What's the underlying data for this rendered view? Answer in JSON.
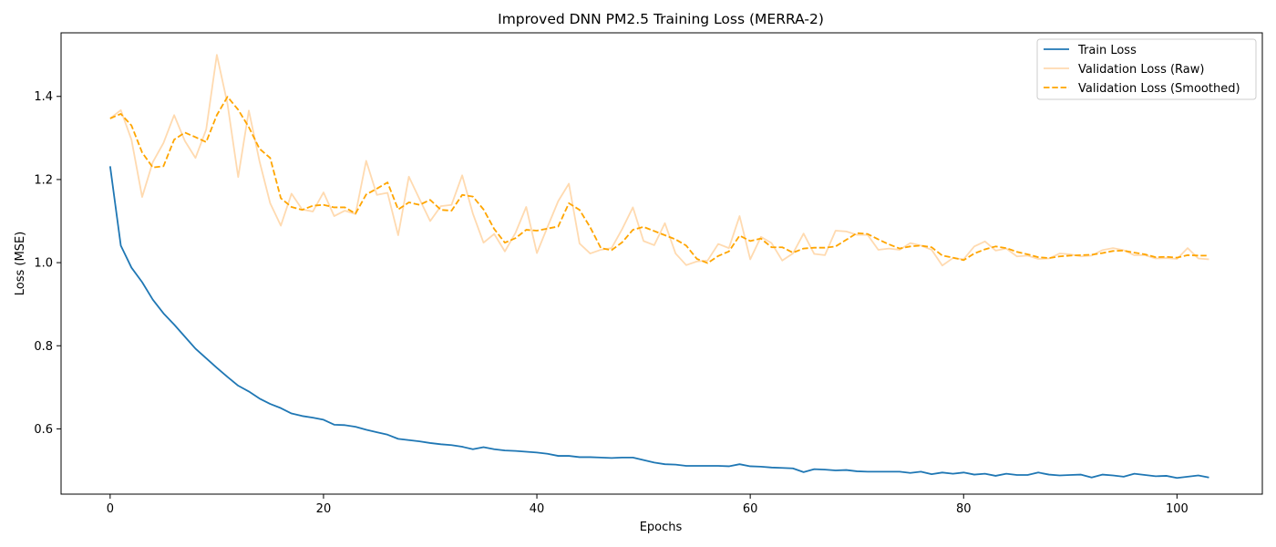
{
  "chart_data": {
    "type": "line",
    "title": "Improved DNN PM2.5 Training Loss (MERRA-2)",
    "xlabel": "Epochs",
    "ylabel": "Loss (MSE)",
    "xlim": [
      -4.6,
      108
    ],
    "ylim": [
      0.443,
      1.553
    ],
    "xticks": [
      0,
      20,
      40,
      60,
      80,
      100
    ],
    "yticks": [
      0.6,
      0.8,
      1.0,
      1.2,
      1.4
    ],
    "xtick_labels": [
      "0",
      "20",
      "40",
      "60",
      "80",
      "100"
    ],
    "ytick_labels": [
      "0.6",
      "0.8",
      "1.0",
      "1.2",
      "1.4"
    ],
    "grid": false,
    "legend_position": "top-right",
    "series": [
      {
        "name": "Train Loss",
        "color": "#1f77b4",
        "style": "solid",
        "opacity": 1.0,
        "values": [
          1.232,
          1.041,
          0.988,
          0.953,
          0.911,
          0.878,
          0.851,
          0.822,
          0.793,
          0.77,
          0.747,
          0.725,
          0.704,
          0.69,
          0.673,
          0.66,
          0.65,
          0.637,
          0.631,
          0.627,
          0.622,
          0.61,
          0.609,
          0.605,
          0.598,
          0.592,
          0.586,
          0.576,
          0.573,
          0.57,
          0.566,
          0.563,
          0.561,
          0.557,
          0.551,
          0.556,
          0.551,
          0.548,
          0.547,
          0.545,
          0.543,
          0.54,
          0.535,
          0.535,
          0.532,
          0.532,
          0.531,
          0.53,
          0.531,
          0.531,
          0.525,
          0.519,
          0.515,
          0.514,
          0.511,
          0.511,
          0.511,
          0.511,
          0.51,
          0.515,
          0.51,
          0.509,
          0.507,
          0.506,
          0.505,
          0.496,
          0.503,
          0.502,
          0.5,
          0.501,
          0.498,
          0.497,
          0.497,
          0.497,
          0.497,
          0.494,
          0.497,
          0.491,
          0.495,
          0.492,
          0.495,
          0.49,
          0.492,
          0.487,
          0.492,
          0.489,
          0.489,
          0.495,
          0.49,
          0.488,
          0.489,
          0.49,
          0.483,
          0.49,
          0.488,
          0.485,
          0.492,
          0.489,
          0.486,
          0.487,
          0.482,
          0.485,
          0.488,
          0.483
        ]
      },
      {
        "name": "Validation Loss (Raw)",
        "color": "#ffdab0",
        "style": "solid",
        "opacity": 1.0,
        "values": [
          1.347,
          1.367,
          1.296,
          1.158,
          1.242,
          1.288,
          1.355,
          1.293,
          1.252,
          1.32,
          1.5,
          1.382,
          1.206,
          1.366,
          1.244,
          1.143,
          1.089,
          1.166,
          1.128,
          1.123,
          1.169,
          1.112,
          1.125,
          1.117,
          1.245,
          1.163,
          1.168,
          1.066,
          1.207,
          1.153,
          1.1,
          1.136,
          1.139,
          1.21,
          1.118,
          1.048,
          1.069,
          1.027,
          1.072,
          1.134,
          1.023,
          1.086,
          1.148,
          1.19,
          1.046,
          1.022,
          1.031,
          1.035,
          1.081,
          1.133,
          1.052,
          1.042,
          1.095,
          1.022,
          0.994,
          1.003,
          1.005,
          1.045,
          1.035,
          1.112,
          1.008,
          1.062,
          1.047,
          1.005,
          1.022,
          1.07,
          1.021,
          1.018,
          1.077,
          1.075,
          1.067,
          1.067,
          1.031,
          1.034,
          1.031,
          1.047,
          1.041,
          1.031,
          0.993,
          1.011,
          1.008,
          1.039,
          1.051,
          1.029,
          1.034,
          1.015,
          1.017,
          1.009,
          1.01,
          1.022,
          1.02,
          1.015,
          1.017,
          1.03,
          1.035,
          1.03,
          1.018,
          1.018,
          1.01,
          1.011,
          1.009,
          1.035,
          1.01,
          1.008
        ]
      },
      {
        "name": "Validation Loss (Smoothed)",
        "color": "#ffa500",
        "style": "dashed",
        "opacity": 1.0,
        "values": [
          1.347,
          1.358,
          1.33,
          1.265,
          1.229,
          1.232,
          1.296,
          1.313,
          1.302,
          1.29,
          1.355,
          1.399,
          1.368,
          1.326,
          1.274,
          1.252,
          1.155,
          1.134,
          1.127,
          1.137,
          1.139,
          1.133,
          1.133,
          1.118,
          1.164,
          1.178,
          1.193,
          1.128,
          1.145,
          1.139,
          1.151,
          1.127,
          1.125,
          1.163,
          1.159,
          1.128,
          1.081,
          1.048,
          1.059,
          1.079,
          1.077,
          1.082,
          1.087,
          1.143,
          1.127,
          1.085,
          1.035,
          1.03,
          1.049,
          1.079,
          1.086,
          1.076,
          1.066,
          1.056,
          1.041,
          1.009,
          0.999,
          1.016,
          1.027,
          1.065,
          1.052,
          1.058,
          1.037,
          1.037,
          1.024,
          1.034,
          1.036,
          1.036,
          1.039,
          1.055,
          1.071,
          1.069,
          1.056,
          1.044,
          1.034,
          1.039,
          1.041,
          1.037,
          1.017,
          1.012,
          1.006,
          1.022,
          1.032,
          1.039,
          1.035,
          1.026,
          1.02,
          1.013,
          1.011,
          1.015,
          1.017,
          1.018,
          1.019,
          1.023,
          1.028,
          1.029,
          1.024,
          1.02,
          1.013,
          1.014,
          1.012,
          1.018,
          1.017,
          1.017
        ]
      }
    ]
  }
}
